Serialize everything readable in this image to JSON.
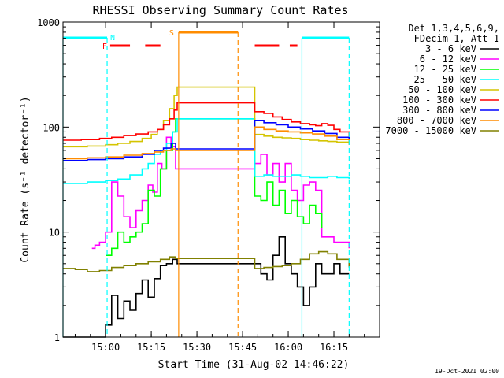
{
  "chart_data": {
    "type": "line",
    "title": "RHESSI Observing Summary Count Rates",
    "xlabel": "Start Time (31-Aug-02 14:46:22)",
    "ylabel": "Count Rate (s⁻¹ detector⁻¹)",
    "yscale": "log",
    "ylim": [
      1,
      1000
    ],
    "xlim": [
      0,
      104
    ],
    "x_unit": "minutes after 14:46:22",
    "x_ticks": [
      {
        "x": 14,
        "label": "15:00"
      },
      {
        "x": 29,
        "label": "15:15"
      },
      {
        "x": 44,
        "label": "15:30"
      },
      {
        "x": 59,
        "label": "15:45"
      },
      {
        "x": 74,
        "label": "16:00"
      },
      {
        "x": 89,
        "label": "16:15"
      }
    ],
    "y_ticks": [
      {
        "y": 1,
        "label": "1"
      },
      {
        "y": 10,
        "label": "10"
      },
      {
        "y": 100,
        "label": "100"
      },
      {
        "y": 1000,
        "label": "1000"
      }
    ],
    "legend_header": [
      "Det 1,3,4,5,6,9,",
      "FDecim 1, Att 1"
    ],
    "legend_placement": "right",
    "timestamp": "19-Oct-2021 02:00",
    "series": [
      {
        "name": "3 - 6 keV",
        "color": "#000000",
        "x": [
          0,
          10,
          14,
          16,
          18,
          20,
          22,
          24,
          26,
          28,
          30,
          32,
          34,
          36,
          37.5,
          63,
          65,
          67,
          69,
          71,
          73,
          75,
          77,
          79,
          81,
          83,
          85,
          87,
          89,
          91,
          94
        ],
        "y": [
          1,
          1,
          1.3,
          2.5,
          1.5,
          2.2,
          1.8,
          2.6,
          3.5,
          2.4,
          3.6,
          4.8,
          5,
          5.5,
          5,
          5,
          4,
          3.5,
          6,
          9,
          5,
          4,
          3,
          2,
          3,
          5,
          4,
          4,
          5,
          4,
          4
        ]
      },
      {
        "name": "6 - 12 keV",
        "color": "#ff00ff",
        "x": [
          9.5,
          10.5,
          12,
          14,
          16,
          18,
          20,
          22,
          24,
          26,
          28,
          29.5,
          31,
          32.5,
          34,
          35.5,
          37,
          63,
          65,
          67,
          69,
          71,
          73,
          75,
          77,
          79,
          81,
          83,
          85,
          87,
          89,
          91,
          94
        ],
        "y": [
          7,
          7.5,
          8,
          10,
          30,
          22,
          14,
          11,
          16,
          20,
          28,
          24,
          45,
          40,
          80,
          65,
          40,
          45,
          55,
          35,
          45,
          30,
          45,
          25,
          20,
          28,
          30,
          25,
          9,
          9,
          8,
          8,
          7
        ]
      },
      {
        "name": "12 - 25 keV",
        "color": "#00ff00",
        "x": [
          14,
          16,
          18,
          20,
          22,
          24,
          26,
          28,
          30,
          32,
          34,
          36,
          37,
          63,
          65,
          67,
          69,
          71,
          73,
          75,
          77,
          79,
          81,
          83,
          85
        ],
        "y": [
          6,
          7,
          10,
          8,
          9,
          10,
          12,
          25,
          22,
          40,
          60,
          90,
          120,
          22,
          20,
          30,
          18,
          25,
          15,
          20,
          14,
          12,
          18,
          15,
          11
        ]
      },
      {
        "name": "25 - 50 keV",
        "color": "#00ffff",
        "x": [
          0,
          8,
          14,
          18,
          22,
          26,
          28,
          30,
          32,
          34,
          36,
          37.5,
          63,
          66,
          69,
          72,
          75,
          78,
          81,
          84,
          87,
          90,
          94
        ],
        "y": [
          29,
          30,
          31,
          32,
          35,
          40,
          45,
          55,
          60,
          70,
          90,
          120,
          34,
          35,
          34,
          34,
          35,
          34,
          33,
          33,
          34,
          33,
          32
        ]
      },
      {
        "name": "50 - 100 keV",
        "color": "#d4c400",
        "x": [
          0,
          8,
          14,
          18,
          22,
          26,
          29,
          31,
          33,
          35,
          36.5,
          37.5,
          63,
          66,
          69,
          72,
          75,
          78,
          81,
          84,
          87,
          90,
          94
        ],
        "y": [
          65,
          66,
          68,
          70,
          73,
          78,
          85,
          95,
          115,
          150,
          200,
          240,
          85,
          82,
          80,
          79,
          78,
          76,
          75,
          74,
          73,
          72,
          70
        ]
      },
      {
        "name": "100 - 300 keV",
        "color": "#ff0000",
        "x": [
          0,
          6,
          12,
          16,
          20,
          24,
          28,
          31,
          33,
          35,
          36.5,
          37.5,
          63,
          66,
          69,
          72,
          75,
          78,
          81,
          83,
          85,
          87,
          89,
          91,
          94
        ],
        "y": [
          75,
          76,
          78,
          80,
          83,
          86,
          90,
          95,
          105,
          120,
          145,
          170,
          140,
          135,
          125,
          118,
          112,
          108,
          105,
          103,
          108,
          104,
          95,
          90,
          80
        ]
      },
      {
        "name": "300 - 800 keV",
        "color": "#0000ff",
        "x": [
          0,
          8,
          14,
          20,
          26,
          30,
          33,
          35.5,
          37,
          63,
          66,
          70,
          74,
          78,
          82,
          86,
          90,
          94
        ],
        "y": [
          48,
          49,
          50,
          52,
          55,
          60,
          63,
          70,
          62,
          115,
          110,
          105,
          100,
          96,
          92,
          87,
          80,
          70
        ]
      },
      {
        "name": "800 - 7000 keV",
        "color": "#ff8c00",
        "x": [
          0,
          8,
          14,
          20,
          26,
          30,
          33,
          35.5,
          37,
          63,
          66,
          70,
          74,
          78,
          82,
          86,
          90,
          94
        ],
        "y": [
          50,
          51,
          52,
          54,
          56,
          58,
          60,
          62,
          60,
          100,
          95,
          92,
          90,
          88,
          86,
          82,
          76,
          68
        ]
      },
      {
        "name": "7000 - 15000 keV",
        "color": "#808000",
        "x": [
          0,
          4,
          8,
          12,
          16,
          20,
          24,
          28,
          32,
          35,
          37,
          63,
          66,
          69,
          72,
          75,
          78,
          81,
          84,
          87,
          90,
          94
        ],
        "y": [
          4.5,
          4.4,
          4.2,
          4.3,
          4.6,
          4.8,
          5,
          5.2,
          5.5,
          5.8,
          5.6,
          4.5,
          4.6,
          4.7,
          4.8,
          5,
          5.5,
          6.2,
          6.5,
          6.2,
          5.5,
          4.6
        ]
      }
    ],
    "annotations": [
      {
        "label": "N",
        "color": "#00ffff",
        "type": "cyan-bar",
        "segments": [
          [
            0,
            14.5
          ],
          [
            78.5,
            94
          ]
        ],
        "dashed_verticals": [
          14.5,
          94
        ],
        "solid_verticals": [
          0,
          78.5
        ]
      },
      {
        "label": "F",
        "color": "#ff0000",
        "type": "red-dashes",
        "segments": [
          [
            15.5,
            22
          ],
          [
            27,
            32
          ],
          [
            63,
            71
          ],
          [
            74.5,
            77
          ]
        ]
      },
      {
        "label": "S",
        "color": "#ff8c00",
        "type": "orange-bar",
        "segments": [
          [
            38,
            57.5
          ]
        ],
        "solid_verticals": [
          38
        ],
        "dashed_verticals": [
          57.5
        ]
      }
    ]
  }
}
